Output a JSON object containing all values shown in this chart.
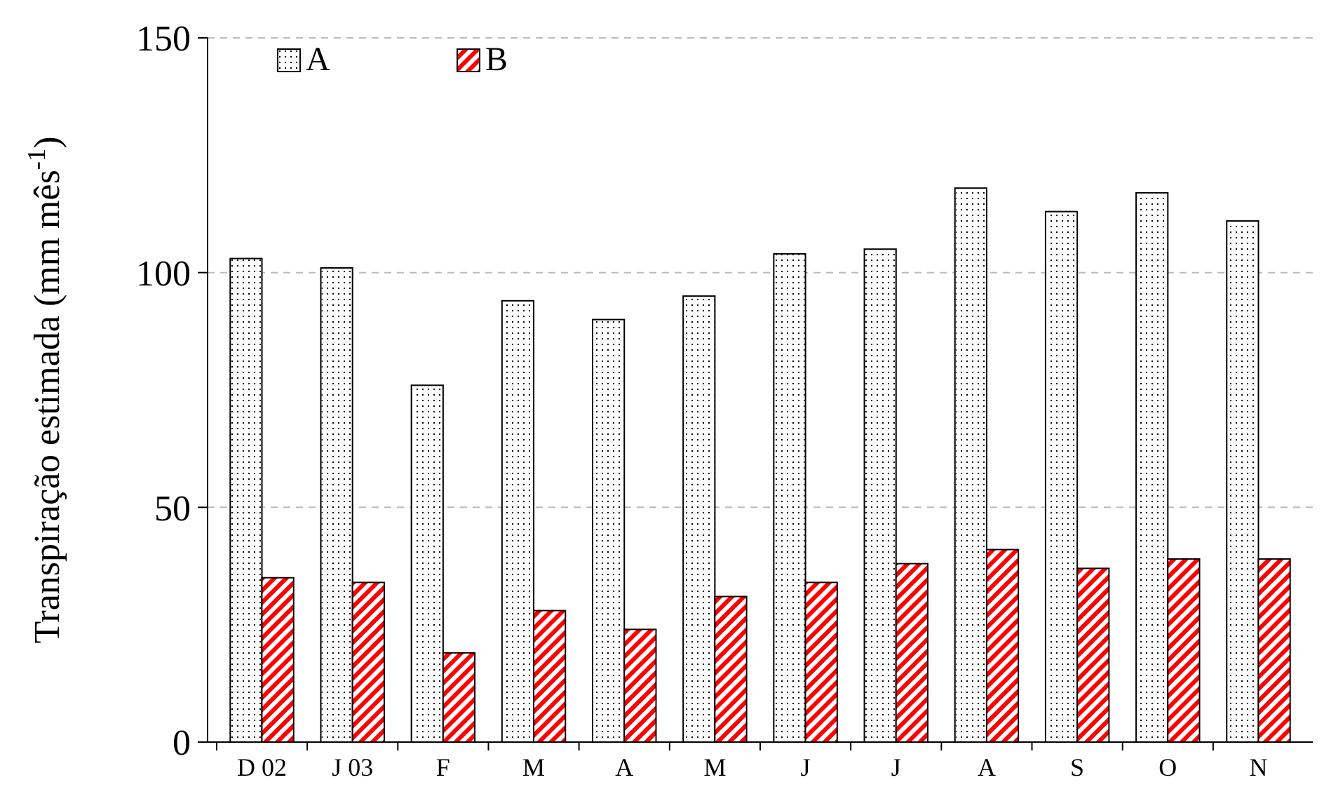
{
  "chart_data": {
    "type": "bar",
    "ylabel": "Transpiração estimada (mm mês$^{-1}$)",
    "categories": [
      "D 02",
      "J 03",
      "F",
      "M",
      "A",
      "M",
      "J",
      "J",
      "A",
      "S",
      "O",
      "N"
    ],
    "series": [
      {
        "name": "A",
        "color": "#ffffff",
        "values": [
          103,
          101,
          76,
          94,
          90,
          95,
          104,
          105,
          118,
          113,
          117,
          111
        ]
      },
      {
        "name": "B",
        "color": "#ff0000",
        "values": [
          35,
          34,
          19,
          28,
          24,
          31,
          34,
          38,
          41,
          37,
          39,
          39
        ]
      }
    ],
    "ylim": [
      0,
      150
    ],
    "yticks": [
      0,
      50,
      100,
      150
    ],
    "grid": "y",
    "legend": "top left"
  }
}
